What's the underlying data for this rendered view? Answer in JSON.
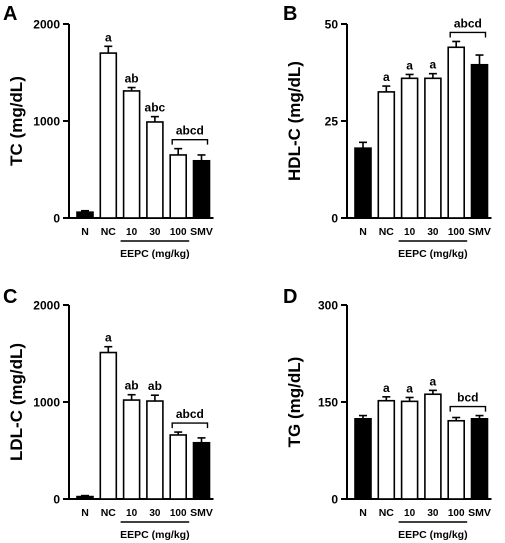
{
  "chart_data": [
    {
      "panel": "A",
      "type": "bar",
      "ylabel": "TC (mg/dL)",
      "ylim": [
        0,
        2000
      ],
      "yticks": [
        0,
        1000,
        2000
      ],
      "categories": [
        "N",
        "NC",
        "10",
        "30",
        "100",
        "SMV"
      ],
      "group_label": "EEPC (mg/kg)",
      "values": [
        60,
        1700,
        1310,
        990,
        650,
        590
      ],
      "errors": [
        15,
        70,
        35,
        55,
        65,
        60
      ],
      "fills": [
        "#000000",
        "#ffffff",
        "#ffffff",
        "#ffffff",
        "#ffffff",
        "#000000"
      ],
      "labels": [
        "",
        "a",
        "ab",
        "abc",
        "",
        ""
      ],
      "bracket_label": "abcd"
    },
    {
      "panel": "B",
      "type": "bar",
      "ylabel": "HDL-C (mg/dL)",
      "ylim": [
        0,
        50
      ],
      "yticks": [
        0,
        25,
        50
      ],
      "categories": [
        "N",
        "NC",
        "10",
        "30",
        "100",
        "SMV"
      ],
      "group_label": "EEPC (mg/kg)",
      "values": [
        18,
        32.5,
        36,
        36,
        44,
        39.5
      ],
      "errors": [
        1.5,
        1.5,
        1.0,
        1.2,
        1.5,
        2.5
      ],
      "fills": [
        "#000000",
        "#ffffff",
        "#ffffff",
        "#ffffff",
        "#ffffff",
        "#000000"
      ],
      "labels": [
        "",
        "a",
        "a",
        "a",
        "",
        ""
      ],
      "bracket_label": "abcd"
    },
    {
      "panel": "C",
      "type": "bar",
      "ylabel": "LDL-C (mg/dL)",
      "ylim": [
        0,
        2000
      ],
      "yticks": [
        0,
        1000,
        2000
      ],
      "categories": [
        "N",
        "NC",
        "10",
        "30",
        "100",
        "SMV"
      ],
      "group_label": "EEPC (mg/kg)",
      "values": [
        25,
        1510,
        1020,
        1010,
        660,
        580
      ],
      "errors": [
        10,
        60,
        55,
        60,
        30,
        50
      ],
      "fills": [
        "#000000",
        "#ffffff",
        "#ffffff",
        "#ffffff",
        "#ffffff",
        "#000000"
      ],
      "labels": [
        "",
        "a",
        "ab",
        "ab",
        "",
        ""
      ],
      "bracket_label": "abcd"
    },
    {
      "panel": "D",
      "type": "bar",
      "ylabel": "TG (mg/dL)",
      "ylim": [
        0,
        300
      ],
      "yticks": [
        0,
        150,
        300
      ],
      "categories": [
        "N",
        "NC",
        "10",
        "30",
        "100",
        "SMV"
      ],
      "group_label": "EEPC (mg/kg)",
      "values": [
        124,
        152,
        151,
        162,
        121,
        124
      ],
      "errors": [
        5,
        6,
        6,
        6,
        5,
        5
      ],
      "fills": [
        "#000000",
        "#ffffff",
        "#ffffff",
        "#ffffff",
        "#ffffff",
        "#000000"
      ],
      "labels": [
        "",
        "a",
        "a",
        "a",
        "",
        ""
      ],
      "bracket_label": "bcd"
    }
  ]
}
